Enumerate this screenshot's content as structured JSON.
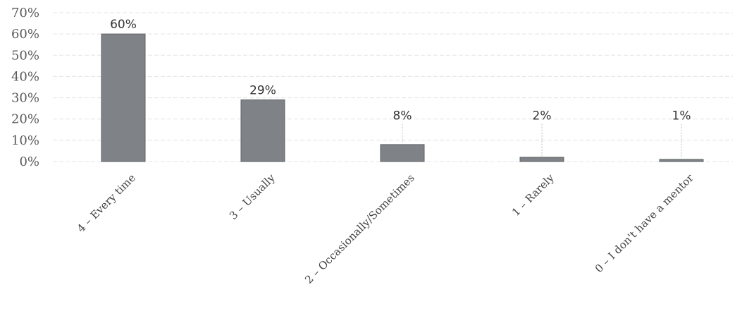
{
  "chart_data": {
    "type": "bar",
    "categories": [
      "4 – Every time",
      "3 – Usually",
      "2 – Occasionally/Sometimes",
      "1 – Rarely",
      "0 – I don't have a mentor"
    ],
    "values": [
      60,
      29,
      8,
      2,
      1
    ],
    "value_labels": [
      "60%",
      "29%",
      "8%",
      "2%",
      "1%"
    ],
    "ylim": [
      0,
      70
    ],
    "yticks": [
      0,
      10,
      20,
      30,
      40,
      50,
      60,
      70
    ],
    "ytick_labels": [
      "0%",
      "10%",
      "20%",
      "30%",
      "40%",
      "50%",
      "60%",
      "70%"
    ],
    "title": "",
    "xlabel": "",
    "ylabel": "",
    "grid": true,
    "bar_color": "#7f8286",
    "legend": "none"
  }
}
